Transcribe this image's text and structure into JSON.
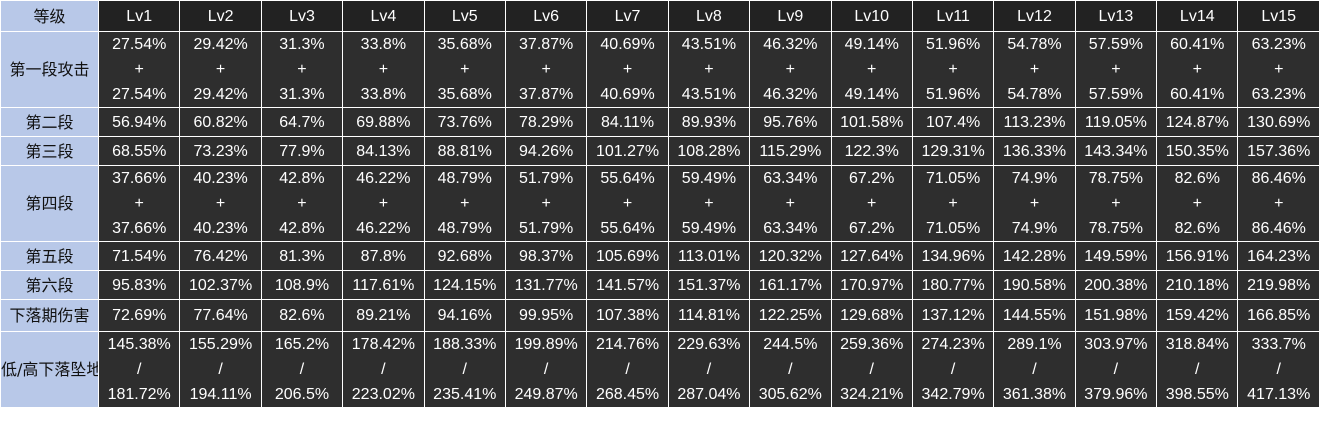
{
  "header": {
    "corner": "等级",
    "levels": [
      "Lv1",
      "Lv2",
      "Lv3",
      "Lv4",
      "Lv5",
      "Lv6",
      "Lv7",
      "Lv8",
      "Lv9",
      "Lv10",
      "Lv11",
      "Lv12",
      "Lv13",
      "Lv14",
      "Lv15"
    ]
  },
  "rows": [
    {
      "label": "第一段攻击",
      "values": [
        [
          "27.54%",
          "+",
          "27.54%"
        ],
        [
          "29.42%",
          "+",
          "29.42%"
        ],
        [
          "31.3%",
          "+",
          "31.3%"
        ],
        [
          "33.8%",
          "+",
          "33.8%"
        ],
        [
          "35.68%",
          "+",
          "35.68%"
        ],
        [
          "37.87%",
          "+",
          "37.87%"
        ],
        [
          "40.69%",
          "+",
          "40.69%"
        ],
        [
          "43.51%",
          "+",
          "43.51%"
        ],
        [
          "46.32%",
          "+",
          "46.32%"
        ],
        [
          "49.14%",
          "+",
          "49.14%"
        ],
        [
          "51.96%",
          "+",
          "51.96%"
        ],
        [
          "54.78%",
          "+",
          "54.78%"
        ],
        [
          "57.59%",
          "+",
          "57.59%"
        ],
        [
          "60.41%",
          "+",
          "60.41%"
        ],
        [
          "63.23%",
          "+",
          "63.23%"
        ]
      ]
    },
    {
      "label": "第二段",
      "values": [
        [
          "56.94%"
        ],
        [
          "60.82%"
        ],
        [
          "64.7%"
        ],
        [
          "69.88%"
        ],
        [
          "73.76%"
        ],
        [
          "78.29%"
        ],
        [
          "84.11%"
        ],
        [
          "89.93%"
        ],
        [
          "95.76%"
        ],
        [
          "101.58%"
        ],
        [
          "107.4%"
        ],
        [
          "113.23%"
        ],
        [
          "119.05%"
        ],
        [
          "124.87%"
        ],
        [
          "130.69%"
        ]
      ]
    },
    {
      "label": "第三段",
      "values": [
        [
          "68.55%"
        ],
        [
          "73.23%"
        ],
        [
          "77.9%"
        ],
        [
          "84.13%"
        ],
        [
          "88.81%"
        ],
        [
          "94.26%"
        ],
        [
          "101.27%"
        ],
        [
          "108.28%"
        ],
        [
          "115.29%"
        ],
        [
          "122.3%"
        ],
        [
          "129.31%"
        ],
        [
          "136.33%"
        ],
        [
          "143.34%"
        ],
        [
          "150.35%"
        ],
        [
          "157.36%"
        ]
      ]
    },
    {
      "label": "第四段",
      "values": [
        [
          "37.66%",
          "+",
          "37.66%"
        ],
        [
          "40.23%",
          "+",
          "40.23%"
        ],
        [
          "42.8%",
          "+",
          "42.8%"
        ],
        [
          "46.22%",
          "+",
          "46.22%"
        ],
        [
          "48.79%",
          "+",
          "48.79%"
        ],
        [
          "51.79%",
          "+",
          "51.79%"
        ],
        [
          "55.64%",
          "+",
          "55.64%"
        ],
        [
          "59.49%",
          "+",
          "59.49%"
        ],
        [
          "63.34%",
          "+",
          "63.34%"
        ],
        [
          "67.2%",
          "+",
          "67.2%"
        ],
        [
          "71.05%",
          "+",
          "71.05%"
        ],
        [
          "74.9%",
          "+",
          "74.9%"
        ],
        [
          "78.75%",
          "+",
          "78.75%"
        ],
        [
          "82.6%",
          "+",
          "82.6%"
        ],
        [
          "86.46%",
          "+",
          "86.46%"
        ]
      ]
    },
    {
      "label": "第五段",
      "values": [
        [
          "71.54%"
        ],
        [
          "76.42%"
        ],
        [
          "81.3%"
        ],
        [
          "87.8%"
        ],
        [
          "92.68%"
        ],
        [
          "98.37%"
        ],
        [
          "105.69%"
        ],
        [
          "113.01%"
        ],
        [
          "120.32%"
        ],
        [
          "127.64%"
        ],
        [
          "134.96%"
        ],
        [
          "142.28%"
        ],
        [
          "149.59%"
        ],
        [
          "156.91%"
        ],
        [
          "164.23%"
        ]
      ]
    },
    {
      "label": "第六段",
      "values": [
        [
          "95.83%"
        ],
        [
          "102.37%"
        ],
        [
          "108.9%"
        ],
        [
          "117.61%"
        ],
        [
          "124.15%"
        ],
        [
          "131.77%"
        ],
        [
          "141.57%"
        ],
        [
          "151.37%"
        ],
        [
          "161.17%"
        ],
        [
          "170.97%"
        ],
        [
          "180.77%"
        ],
        [
          "190.58%"
        ],
        [
          "200.38%"
        ],
        [
          "210.18%"
        ],
        [
          "219.98%"
        ]
      ]
    },
    {
      "label": "下落期伤害",
      "values": [
        [
          "72.69%"
        ],
        [
          "77.64%"
        ],
        [
          "82.6%"
        ],
        [
          "89.21%"
        ],
        [
          "94.16%"
        ],
        [
          "99.95%"
        ],
        [
          "107.38%"
        ],
        [
          "114.81%"
        ],
        [
          "122.25%"
        ],
        [
          "129.68%"
        ],
        [
          "137.12%"
        ],
        [
          "144.55%"
        ],
        [
          "151.98%"
        ],
        [
          "159.42%"
        ],
        [
          "166.85%"
        ]
      ]
    },
    {
      "label": "低/高下落坠地冲击伤害",
      "values": [
        [
          "145.38%",
          "/",
          "181.72%"
        ],
        [
          "155.29%",
          "/",
          "194.11%"
        ],
        [
          "165.2%",
          "/",
          "206.5%"
        ],
        [
          "178.42%",
          "/",
          "223.02%"
        ],
        [
          "188.33%",
          "/",
          "235.41%"
        ],
        [
          "199.89%",
          "/",
          "249.87%"
        ],
        [
          "214.76%",
          "/",
          "268.45%"
        ],
        [
          "229.63%",
          "/",
          "287.04%"
        ],
        [
          "244.5%",
          "/",
          "305.62%"
        ],
        [
          "259.36%",
          "/",
          "324.21%"
        ],
        [
          "274.23%",
          "/",
          "342.79%"
        ],
        [
          "289.1%",
          "/",
          "361.38%"
        ],
        [
          "303.97%",
          "/",
          "379.96%"
        ],
        [
          "318.84%",
          "/",
          "398.55%"
        ],
        [
          "333.7%",
          "/",
          "417.13%"
        ]
      ]
    }
  ]
}
